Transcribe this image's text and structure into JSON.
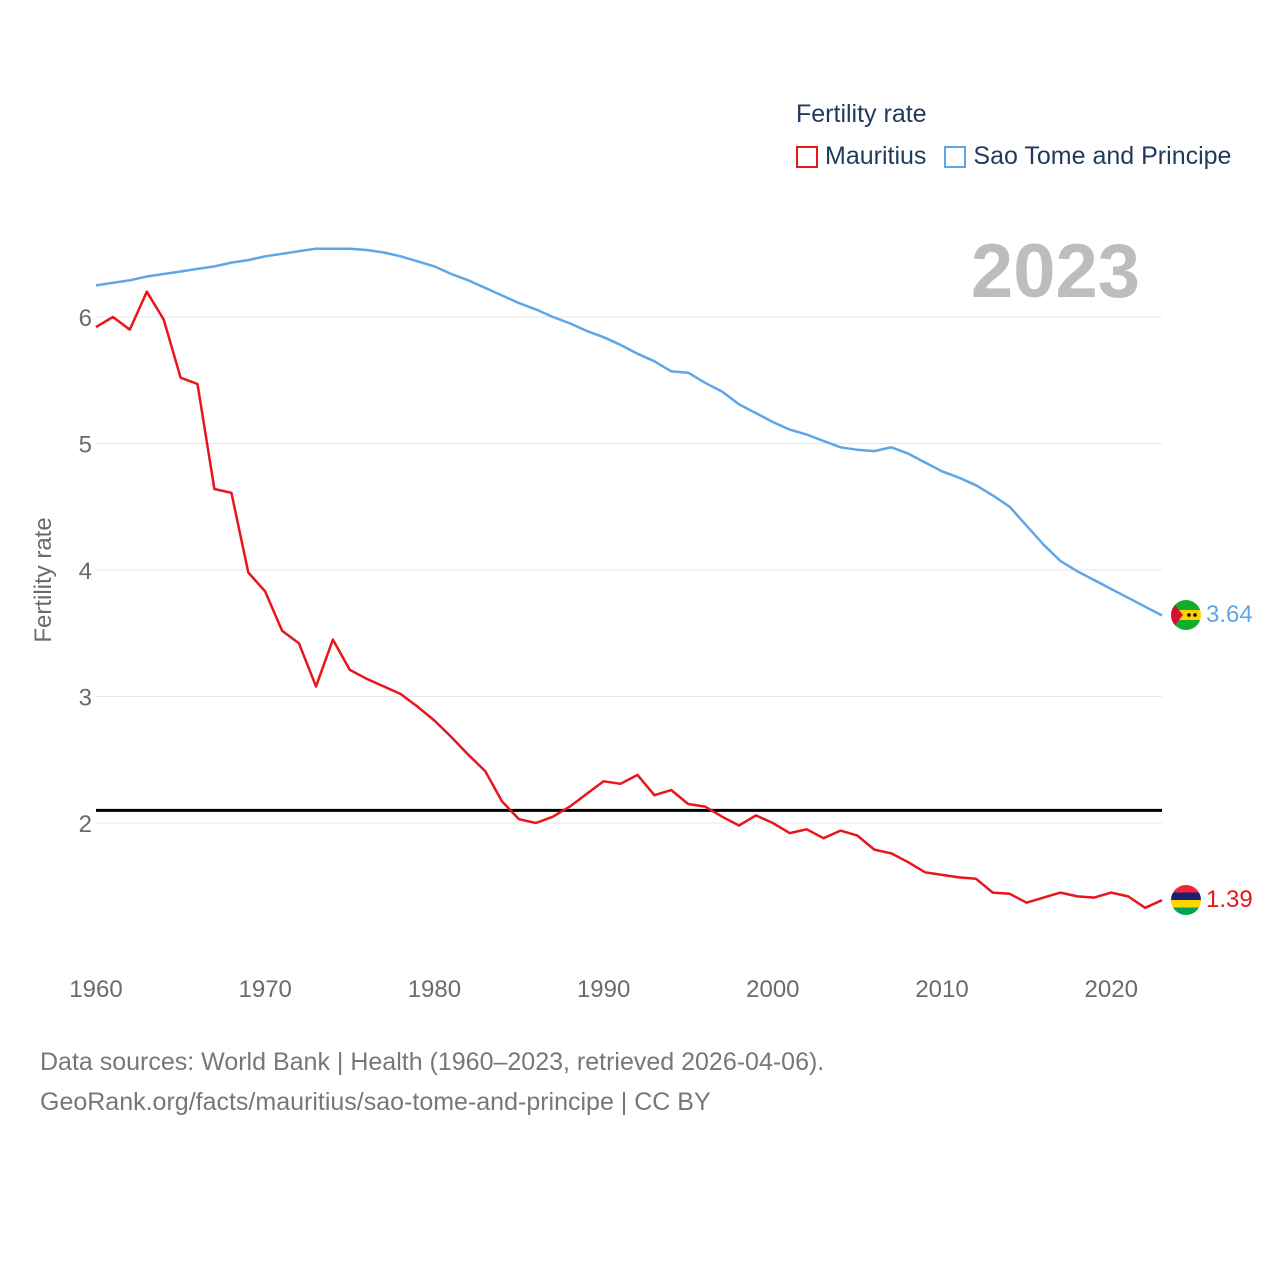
{
  "colors": {
    "mauritius": "#e8151b",
    "sao_tome": "#5fa6e6",
    "reference": "#000000",
    "grid": "#e6e6e6",
    "tick": "#6b6b6b",
    "year": "#bdbdbd"
  },
  "legend": {
    "title": "Fertility rate",
    "items": [
      {
        "label": "Mauritius"
      },
      {
        "label": "Sao Tome and Principe"
      }
    ]
  },
  "current_year": "2023",
  "footer": {
    "line1": "Data sources: World Bank | Health (1960–2023, retrieved 2026-04-06).",
    "line2": "GeoRank.org/facts/mauritius/sao-tome-and-principe | CC BY"
  },
  "chart_data": {
    "type": "line",
    "title": "Fertility rate",
    "xlabel": "",
    "ylabel": "Fertility rate",
    "xlim": [
      1960,
      2023
    ],
    "ylim": [
      1.0,
      6.6
    ],
    "x_ticks": [
      1960,
      1970,
      1980,
      1990,
      2000,
      2010,
      2020
    ],
    "y_ticks": [
      2,
      3,
      4,
      5,
      6
    ],
    "reference_line": 2.1,
    "grid": true,
    "legend_position": "top-right",
    "x": [
      1960,
      1961,
      1962,
      1963,
      1964,
      1965,
      1966,
      1967,
      1968,
      1969,
      1970,
      1971,
      1972,
      1973,
      1974,
      1975,
      1976,
      1977,
      1978,
      1979,
      1980,
      1981,
      1982,
      1983,
      1984,
      1985,
      1986,
      1987,
      1988,
      1989,
      1990,
      1991,
      1992,
      1993,
      1994,
      1995,
      1996,
      1997,
      1998,
      1999,
      2000,
      2001,
      2002,
      2003,
      2004,
      2005,
      2006,
      2007,
      2008,
      2009,
      2010,
      2011,
      2012,
      2013,
      2014,
      2015,
      2016,
      2017,
      2018,
      2019,
      2020,
      2021,
      2022,
      2023
    ],
    "series": [
      {
        "name": "Mauritius",
        "end_label": "1.39",
        "values": [
          5.92,
          6.0,
          5.9,
          6.2,
          5.98,
          5.52,
          5.47,
          4.64,
          4.61,
          3.98,
          3.83,
          3.52,
          3.42,
          3.08,
          3.45,
          3.21,
          3.14,
          3.08,
          3.02,
          2.92,
          2.81,
          2.68,
          2.54,
          2.41,
          2.17,
          2.03,
          2.0,
          2.05,
          2.13,
          2.23,
          2.33,
          2.31,
          2.38,
          2.22,
          2.26,
          2.15,
          2.13,
          2.05,
          1.98,
          2.06,
          2.0,
          1.92,
          1.95,
          1.88,
          1.94,
          1.9,
          1.79,
          1.76,
          1.69,
          1.61,
          1.59,
          1.57,
          1.56,
          1.45,
          1.44,
          1.37,
          1.41,
          1.45,
          1.42,
          1.41,
          1.45,
          1.42,
          1.33,
          1.39
        ]
      },
      {
        "name": "Sao Tome and Principe",
        "end_label": "3.64",
        "values": [
          6.25,
          6.27,
          6.29,
          6.32,
          6.34,
          6.36,
          6.38,
          6.4,
          6.43,
          6.45,
          6.48,
          6.5,
          6.52,
          6.54,
          6.54,
          6.54,
          6.53,
          6.51,
          6.48,
          6.44,
          6.4,
          6.34,
          6.29,
          6.23,
          6.17,
          6.11,
          6.06,
          6.0,
          5.95,
          5.89,
          5.84,
          5.78,
          5.71,
          5.65,
          5.57,
          5.56,
          5.48,
          5.41,
          5.31,
          5.24,
          5.17,
          5.11,
          5.07,
          5.02,
          4.97,
          4.95,
          4.94,
          4.97,
          4.92,
          4.85,
          4.78,
          4.73,
          4.67,
          4.59,
          4.5,
          4.35,
          4.2,
          4.07,
          3.99,
          3.92,
          3.85,
          3.78,
          3.71,
          3.64
        ]
      }
    ]
  }
}
